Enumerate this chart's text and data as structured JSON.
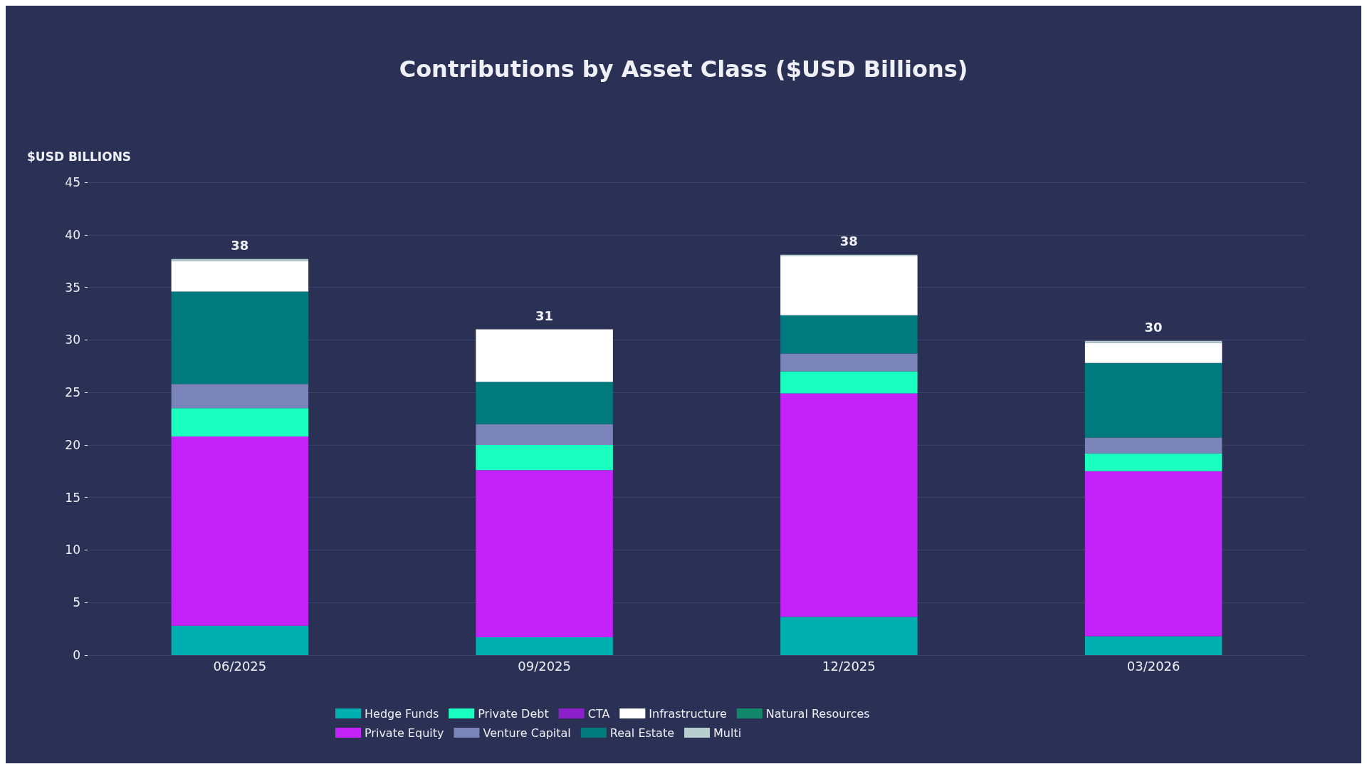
{
  "chart_data": {
    "type": "bar",
    "title": "Contributions by Asset Class ($USD Billions)",
    "ylabel": "$USD BILLIONS",
    "stacked": true,
    "categories": [
      "06/2025",
      "09/2025",
      "12/2025",
      "03/2026"
    ],
    "series": [
      {
        "name": "Hedge Funds",
        "color": "#00b0b0",
        "values": [
          2.8,
          1.7,
          3.65,
          1.8
        ]
      },
      {
        "name": "Private Equity",
        "color": "#c322f9",
        "values": [
          18.0,
          15.9,
          21.25,
          15.7
        ]
      },
      {
        "name": "Private Debt",
        "color": "#1affc0",
        "values": [
          2.7,
          2.4,
          2.1,
          1.7
        ]
      },
      {
        "name": "Venture Capital",
        "color": "#7a84b8",
        "values": [
          2.3,
          2.0,
          1.7,
          1.5
        ]
      },
      {
        "name": "CTA",
        "color": "#8b1fc9",
        "values": [
          0,
          0,
          0,
          0
        ]
      },
      {
        "name": "Real Estate",
        "color": "#007a7c",
        "values": [
          8.8,
          4.0,
          3.65,
          7.1
        ]
      },
      {
        "name": "Infrastructure",
        "color": "#ffffff",
        "values": [
          2.9,
          5.0,
          5.6,
          1.9
        ]
      },
      {
        "name": "Multi",
        "color": "#b9cfcf",
        "values": [
          0.2,
          0,
          0.15,
          0.2
        ]
      },
      {
        "name": "Natural Resources",
        "color": "#12876a",
        "values": [
          0,
          0,
          0,
          0
        ]
      }
    ],
    "totals": [
      "38",
      "31",
      "38",
      "30"
    ],
    "ylim": [
      0,
      45
    ],
    "yticks": [
      0,
      5,
      10,
      15,
      20,
      25,
      30,
      35,
      40,
      45
    ],
    "grid": "y",
    "legend": "bottom"
  }
}
